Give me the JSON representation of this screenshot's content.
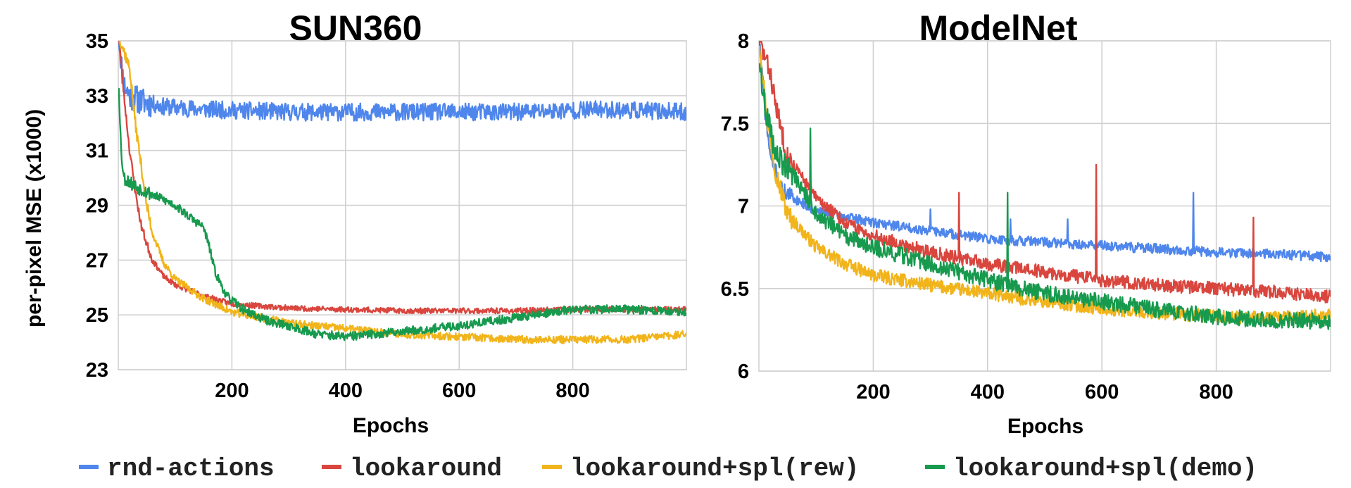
{
  "legend": [
    {
      "label": "rnd-actions",
      "color": "#4f86ec"
    },
    {
      "label": "lookaround",
      "color": "#d9463e"
    },
    {
      "label": "lookaround+spl(rew)",
      "color": "#f1b41b"
    },
    {
      "label": "lookaround+spl(demo)",
      "color": "#179a4e"
    }
  ],
  "chart_data": [
    {
      "type": "line",
      "title": "SUN360",
      "xlabel": "Epochs",
      "ylabel": "per-pixel MSE (x1000)",
      "xlim": [
        0,
        1000
      ],
      "ylim": [
        23,
        35
      ],
      "xticks": [
        "200",
        "400",
        "600",
        "800"
      ],
      "xtick_values": [
        200,
        400,
        600,
        800
      ],
      "yticks": [
        "35",
        "33",
        "31",
        "29",
        "27",
        "25",
        "23"
      ],
      "ytick_values": [
        35,
        33,
        31,
        29,
        27,
        25,
        23
      ],
      "grid": true,
      "series": [
        {
          "name": "rnd-actions",
          "color": "#4f86ec",
          "noise": 0.32,
          "seed": 11,
          "points": [
            [
              1,
              35.2
            ],
            [
              5,
              34.2
            ],
            [
              10,
              33.4
            ],
            [
              20,
              33.0
            ],
            [
              40,
              32.8
            ],
            [
              80,
              32.6
            ],
            [
              150,
              32.5
            ],
            [
              300,
              32.4
            ],
            [
              500,
              32.4
            ],
            [
              700,
              32.4
            ],
            [
              850,
              32.5
            ],
            [
              1000,
              32.4
            ]
          ]
        },
        {
          "name": "lookaround",
          "color": "#d9463e",
          "noise": 0.1,
          "seed": 23,
          "points": [
            [
              1,
              35.2
            ],
            [
              10,
              33.0
            ],
            [
              20,
              31.0
            ],
            [
              30,
              29.5
            ],
            [
              40,
              28.3
            ],
            [
              50,
              27.6
            ],
            [
              60,
              27.0
            ],
            [
              80,
              26.4
            ],
            [
              100,
              26.1
            ],
            [
              150,
              25.7
            ],
            [
              200,
              25.4
            ],
            [
              300,
              25.25
            ],
            [
              400,
              25.2
            ],
            [
              500,
              25.15
            ],
            [
              600,
              25.15
            ],
            [
              700,
              25.15
            ],
            [
              800,
              25.2
            ],
            [
              1000,
              25.2
            ]
          ]
        },
        {
          "name": "lookaround+spl(rew)",
          "color": "#f1b41b",
          "noise": 0.14,
          "seed": 37,
          "points": [
            [
              1,
              35.2
            ],
            [
              20,
              34.0
            ],
            [
              30,
              32.0
            ],
            [
              40,
              30.5
            ],
            [
              50,
              29.0
            ],
            [
              60,
              28.0
            ],
            [
              80,
              26.9
            ],
            [
              100,
              26.3
            ],
            [
              150,
              25.6
            ],
            [
              200,
              25.1
            ],
            [
              300,
              24.7
            ],
            [
              400,
              24.5
            ],
            [
              500,
              24.3
            ],
            [
              600,
              24.2
            ],
            [
              700,
              24.1
            ],
            [
              800,
              24.1
            ],
            [
              900,
              24.1
            ],
            [
              1000,
              24.3
            ]
          ]
        },
        {
          "name": "lookaround+spl(demo)",
          "color": "#179a4e",
          "noise": 0.16,
          "seed": 53,
          "points": [
            [
              1,
              33.4
            ],
            [
              5,
              31.0
            ],
            [
              10,
              30.0
            ],
            [
              30,
              29.7
            ],
            [
              60,
              29.4
            ],
            [
              100,
              29.0
            ],
            [
              130,
              28.5
            ],
            [
              150,
              28.2
            ],
            [
              160,
              27.5
            ],
            [
              170,
              26.6
            ],
            [
              190,
              25.7
            ],
            [
              220,
              25.2
            ],
            [
              260,
              24.8
            ],
            [
              300,
              24.6
            ],
            [
              350,
              24.3
            ],
            [
              400,
              24.2
            ],
            [
              450,
              24.3
            ],
            [
              500,
              24.4
            ],
            [
              550,
              24.5
            ],
            [
              600,
              24.6
            ],
            [
              700,
              24.9
            ],
            [
              800,
              25.2
            ],
            [
              900,
              25.2
            ],
            [
              1000,
              25.1
            ]
          ]
        }
      ]
    },
    {
      "type": "line",
      "title": "ModelNet",
      "xlabel": "Epochs",
      "ylabel": "",
      "xlim": [
        0,
        1000
      ],
      "ylim": [
        6,
        8
      ],
      "xticks": [
        "200",
        "400",
        "600",
        "800"
      ],
      "xtick_values": [
        200,
        400,
        600,
        800
      ],
      "yticks": [
        "8",
        "7.5",
        "7",
        "6.5",
        "6"
      ],
      "ytick_values": [
        8,
        7.5,
        7,
        6.5,
        6
      ],
      "grid": true,
      "series": [
        {
          "name": "rnd-actions",
          "color": "#4f86ec",
          "noise": 0.03,
          "seed": 71,
          "spikes": [
            [
              300,
              6.98
            ],
            [
              440,
              6.92
            ],
            [
              540,
              6.92
            ],
            [
              760,
              7.08
            ]
          ],
          "points": [
            [
              1,
              8.0
            ],
            [
              10,
              7.6
            ],
            [
              20,
              7.3
            ],
            [
              40,
              7.1
            ],
            [
              60,
              7.05
            ],
            [
              100,
              6.97
            ],
            [
              200,
              6.9
            ],
            [
              300,
              6.85
            ],
            [
              400,
              6.8
            ],
            [
              500,
              6.78
            ],
            [
              600,
              6.76
            ],
            [
              700,
              6.74
            ],
            [
              800,
              6.72
            ],
            [
              900,
              6.71
            ],
            [
              1000,
              6.69
            ]
          ]
        },
        {
          "name": "lookaround",
          "color": "#d9463e",
          "noise": 0.04,
          "seed": 83,
          "spikes": [
            [
              350,
              7.08
            ],
            [
              590,
              7.25
            ],
            [
              865,
              6.93
            ]
          ],
          "points": [
            [
              1,
              8.0
            ],
            [
              20,
              7.8
            ],
            [
              30,
              7.6
            ],
            [
              50,
              7.3
            ],
            [
              100,
              7.05
            ],
            [
              150,
              6.9
            ],
            [
              200,
              6.82
            ],
            [
              300,
              6.72
            ],
            [
              400,
              6.65
            ],
            [
              500,
              6.6
            ],
            [
              600,
              6.55
            ],
            [
              700,
              6.52
            ],
            [
              800,
              6.5
            ],
            [
              900,
              6.48
            ],
            [
              1000,
              6.45
            ]
          ]
        },
        {
          "name": "lookaround+spl(rew)",
          "color": "#f1b41b",
          "noise": 0.04,
          "seed": 97,
          "points": [
            [
              1,
              8.0
            ],
            [
              15,
              7.5
            ],
            [
              30,
              7.2
            ],
            [
              50,
              6.95
            ],
            [
              100,
              6.75
            ],
            [
              150,
              6.65
            ],
            [
              200,
              6.58
            ],
            [
              300,
              6.52
            ],
            [
              400,
              6.47
            ],
            [
              500,
              6.42
            ],
            [
              600,
              6.38
            ],
            [
              700,
              6.35
            ],
            [
              800,
              6.33
            ],
            [
              900,
              6.32
            ],
            [
              1000,
              6.34
            ]
          ]
        },
        {
          "name": "lookaround+spl(demo)",
          "color": "#179a4e",
          "noise": 0.05,
          "seed": 109,
          "spikes": [
            [
              90,
              7.47
            ],
            [
              435,
              7.08
            ]
          ],
          "points": [
            [
              1,
              7.9
            ],
            [
              10,
              7.6
            ],
            [
              30,
              7.3
            ],
            [
              60,
              7.2
            ],
            [
              100,
              6.95
            ],
            [
              150,
              6.82
            ],
            [
              200,
              6.75
            ],
            [
              300,
              6.65
            ],
            [
              400,
              6.55
            ],
            [
              500,
              6.47
            ],
            [
              600,
              6.42
            ],
            [
              700,
              6.37
            ],
            [
              800,
              6.33
            ],
            [
              900,
              6.31
            ],
            [
              1000,
              6.3
            ]
          ]
        }
      ]
    }
  ]
}
